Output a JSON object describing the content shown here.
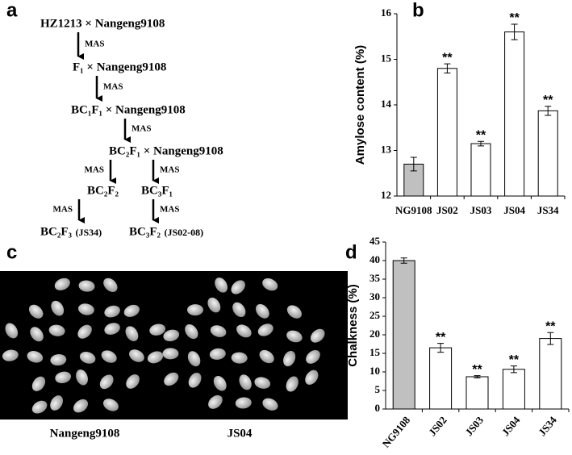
{
  "panel_labels": [
    "a",
    "b",
    "c",
    "d"
  ],
  "diagram": {
    "nodes": [
      {
        "label": "HZ1213 × Nangeng9108"
      },
      {
        "label": "F₁ × Nangeng9108"
      },
      {
        "label": "BC₁F₁ × Nangeng9108"
      },
      {
        "label": "BC₂F₁ × Nangeng9108"
      },
      {
        "label": "BC₂F₂"
      },
      {
        "label": "BC₃F₁"
      },
      {
        "label": "BC₂F₃",
        "note": "(JS34)"
      },
      {
        "label": "BC₃F₂",
        "note": "(JS02-08)"
      }
    ],
    "edges": [
      {
        "from": 0,
        "to": 1,
        "label": "MAS"
      },
      {
        "from": 1,
        "to": 2,
        "label": "MAS"
      },
      {
        "from": 2,
        "to": 3,
        "label": "MAS"
      },
      {
        "from": 3,
        "to": 4,
        "label": "MAS"
      },
      {
        "from": 3,
        "to": 5,
        "label": "MAS"
      },
      {
        "from": 4,
        "to": 6,
        "label": "MAS"
      },
      {
        "from": 5,
        "to": 7,
        "label": "MAS"
      }
    ]
  },
  "image": {
    "captions": [
      "Nangeng9108",
      "JS04"
    ]
  },
  "chart_data": [
    {
      "type": "bar",
      "ylabel": "Amylose content (%)",
      "categories": [
        "NG9108",
        "JS02",
        "JS03",
        "JS04",
        "JS34"
      ],
      "values": [
        12.7,
        14.8,
        13.15,
        15.6,
        13.87
      ],
      "errors": [
        0.15,
        0.1,
        0.05,
        0.17,
        0.1
      ],
      "significance": [
        null,
        "**",
        "**",
        "**",
        "**"
      ],
      "colors": [
        "#c0c0c0",
        "#ffffff",
        "#ffffff",
        "#ffffff",
        "#ffffff"
      ],
      "ylim": [
        12,
        16
      ],
      "yticks": [
        12,
        13,
        14,
        15,
        16
      ]
    },
    {
      "type": "bar",
      "ylabel": "Chalkness (%)",
      "categories": [
        "NG9108",
        "JS02",
        "JS03",
        "JS04",
        "JS34"
      ],
      "values": [
        40,
        16.5,
        8.7,
        10.7,
        19
      ],
      "errors": [
        0.7,
        1.2,
        0.3,
        0.9,
        1.6
      ],
      "significance": [
        null,
        "**",
        "**",
        "**",
        "**"
      ],
      "colors": [
        "#c0c0c0",
        "#ffffff",
        "#ffffff",
        "#ffffff",
        "#ffffff"
      ],
      "ylim": [
        0,
        45
      ],
      "yticks": [
        0,
        5,
        10,
        15,
        20,
        25,
        30,
        35,
        40,
        45
      ]
    }
  ]
}
